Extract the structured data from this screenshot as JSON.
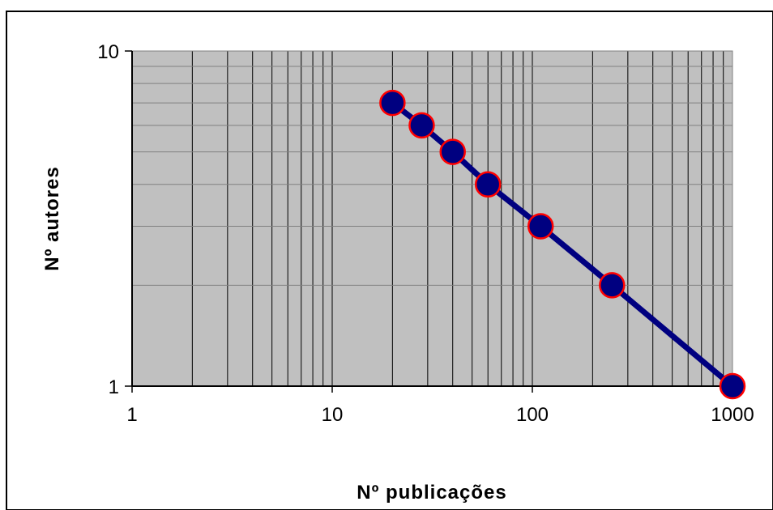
{
  "chart_data": {
    "type": "line",
    "title": "",
    "xlabel": "Nº publicações",
    "ylabel": "Nº autores",
    "x_scale": "log",
    "y_scale": "log",
    "xlim": [
      1,
      1000
    ],
    "ylim": [
      1,
      10
    ],
    "x_ticks": [
      "1",
      "10",
      "100",
      "1000"
    ],
    "y_ticks": [
      "1",
      "10"
    ],
    "grid": true,
    "legend": "none",
    "series": [
      {
        "x": [
          20,
          28,
          40,
          60,
          110,
          250,
          1000
        ],
        "y": [
          7,
          6,
          5,
          4,
          3,
          2,
          1
        ]
      }
    ],
    "colors": {
      "plot_background": "#c0c0c0",
      "grid": "#000000",
      "line": "#000080",
      "marker_fill": "#000080",
      "marker_edge": "#ff0000"
    }
  }
}
